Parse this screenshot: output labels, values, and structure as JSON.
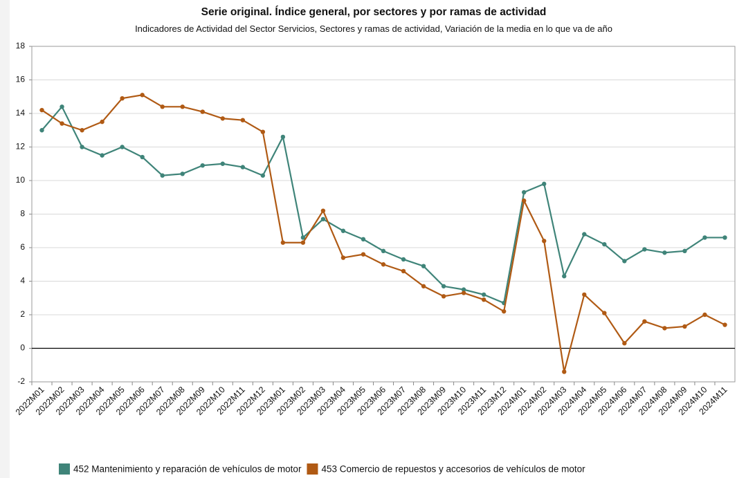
{
  "chart_data": {
    "type": "line",
    "title": "Serie original. Índice general, por sectores y por ramas de actividad",
    "subtitle": "Indicadores de Actividad del Sector Servicios, Sectores y ramas de actividad, Variación de la media en lo que va de año",
    "categories": [
      "2022M01",
      "2022M02",
      "2022M03",
      "2022M04",
      "2022M05",
      "2022M06",
      "2022M07",
      "2022M08",
      "2022M09",
      "2022M10",
      "2022M11",
      "2022M12",
      "2023M01",
      "2023M02",
      "2023M03",
      "2023M04",
      "2023M05",
      "2023M06",
      "2023M07",
      "2023M08",
      "2023M09",
      "2023M10",
      "2023M11",
      "2023M12",
      "2024M01",
      "2024M02",
      "2024M03",
      "2024M04",
      "2024M05",
      "2024M06",
      "2024M07",
      "2024M08",
      "2024M09",
      "2024M10",
      "2024M11"
    ],
    "series": [
      {
        "name": "452 Mantenimiento y reparación de vehículos de motor",
        "color": "#3f8479",
        "values": [
          13.0,
          14.4,
          12.0,
          11.5,
          12.0,
          11.4,
          10.3,
          10.4,
          10.9,
          11.0,
          10.8,
          10.3,
          12.6,
          6.6,
          7.7,
          7.0,
          6.5,
          5.8,
          5.3,
          4.9,
          3.7,
          3.5,
          3.2,
          2.7,
          9.3,
          9.8,
          4.3,
          6.8,
          6.2,
          5.2,
          5.9,
          5.7,
          5.8,
          6.6,
          6.6
        ]
      },
      {
        "name": "453 Comercio de repuestos y accesorios de vehículos de motor",
        "color": "#b05a14",
        "values": [
          14.2,
          13.4,
          13.0,
          13.5,
          14.9,
          15.1,
          14.4,
          14.4,
          14.1,
          13.7,
          13.6,
          12.9,
          6.3,
          6.3,
          8.2,
          5.4,
          5.6,
          5.0,
          4.6,
          3.7,
          3.1,
          3.3,
          2.9,
          2.2,
          8.8,
          6.4,
          -1.4,
          3.2,
          2.1,
          0.3,
          1.6,
          1.2,
          1.3,
          2.0,
          1.4
        ]
      }
    ],
    "ylim": [
      -2,
      18
    ],
    "yticks": [
      -2,
      0,
      2,
      4,
      6,
      8,
      10,
      12,
      14,
      16,
      18
    ],
    "grid": true,
    "legend": "bottom"
  }
}
